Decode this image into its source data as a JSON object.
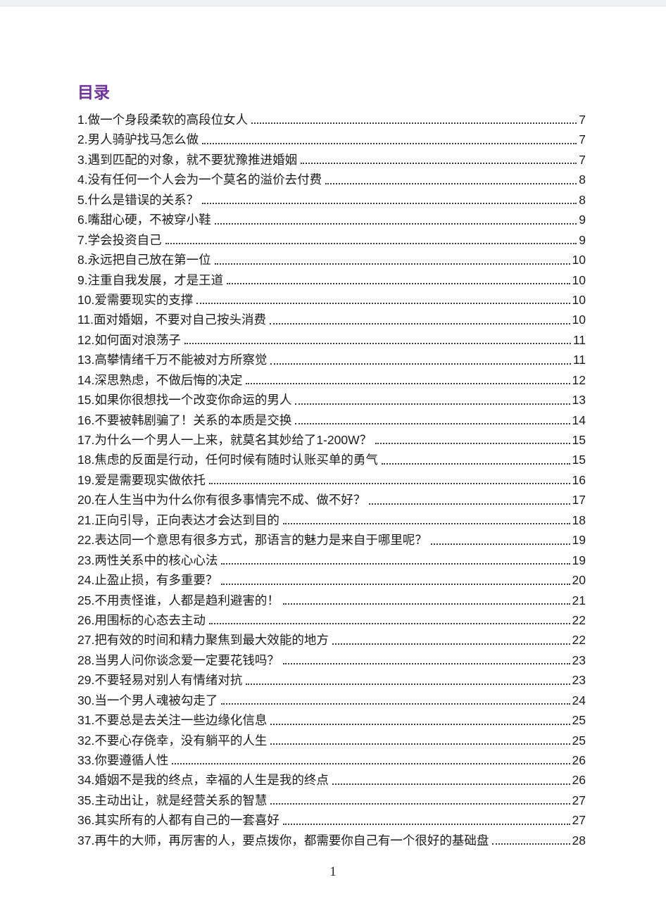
{
  "page": {
    "title": "目录",
    "footer": {
      "page_number": "1"
    }
  },
  "colors": {
    "title": "#7030A0",
    "body_text": "#1d1d1f",
    "leader_dots": "#3a3a3a",
    "top_strip": "#eef0f4"
  },
  "toc": {
    "entries": [
      {
        "label": "1.做一个身段柔软的高段位女人",
        "page": "7"
      },
      {
        "label": "2.男人骑驴找马怎么做",
        "page": "7"
      },
      {
        "label": "3.遇到匹配的对象，就不要犹豫推进婚姻",
        "page": "7"
      },
      {
        "label": "4.没有任何一个人会为一个莫名的溢价去付费",
        "page": "8"
      },
      {
        "label": "5.什么是错误的关系？",
        "page": "8"
      },
      {
        "label": "6.嘴甜心硬，不被穿小鞋",
        "page": "9"
      },
      {
        "label": "7.学会投资自己",
        "page": "9"
      },
      {
        "label": "8.永远把自己放在第一位",
        "page": "10"
      },
      {
        "label": "9.注重自我发展，才是王道",
        "page": "10"
      },
      {
        "label": "10.爱需要现实的支撑",
        "page": "10"
      },
      {
        "label": "11.面对婚姻，不要对自己按头消费",
        "page": "10"
      },
      {
        "label": "12.如何面对浪荡子",
        "page": "11"
      },
      {
        "label": "13.高攀情绪千万不能被对方所察觉",
        "page": "11"
      },
      {
        "label": "14.深思熟虑，不做后悔的决定",
        "page": "12"
      },
      {
        "label": "15.如果你很想找一个改变你命运的男人",
        "page": "13"
      },
      {
        "label": "16.不要被韩剧骗了！关系的本质是交换",
        "page": "14"
      },
      {
        "label": "17.为什么一个男人一上来，就莫名其妙给了1-200W？",
        "page": "15"
      },
      {
        "label": "18.焦虑的反面是行动，任何时候有随时认账买单的勇气",
        "page": "15"
      },
      {
        "label": "19.爱是需要现实做依托",
        "page": "16"
      },
      {
        "label": "20.在人生当中为什么你有很多事情完不成、做不好？",
        "page": "17"
      },
      {
        "label": "21.正向引导，正向表达才会达到目的",
        "page": "18"
      },
      {
        "label": "22.表达同一个意思有很多方式，那语言的魅力是来自于哪里呢？",
        "page": "19"
      },
      {
        "label": "23.两性关系中的核心心法",
        "page": "19"
      },
      {
        "label": "24.止盈止损，有多重要？",
        "page": "20"
      },
      {
        "label": "25.不用责怪谁，人都是趋利避害的！",
        "page": "21"
      },
      {
        "label": "26.用围标的心态去主动",
        "page": "22"
      },
      {
        "label": "27.把有效的时间和精力聚焦到最大效能的地方",
        "page": "22"
      },
      {
        "label": "28.当男人问你谈念爱一定要花钱吗？",
        "page": "23"
      },
      {
        "label": "29.不要轻易对别人有情绪对抗",
        "page": "23"
      },
      {
        "label": "30.当一个男人魂被勾走了",
        "page": "24"
      },
      {
        "label": "31.不要总是去关注一些边缘化信息",
        "page": "25"
      },
      {
        "label": "32.不要心存侥幸，没有躺平的人生",
        "page": "25"
      },
      {
        "label": "33.你要遵循人性",
        "page": "26"
      },
      {
        "label": "34.婚姻不是我的终点，幸福的人生是我的终点",
        "page": "26"
      },
      {
        "label": "35.主动出让，就是经营关系的智慧",
        "page": "27"
      },
      {
        "label": "36.其实所有的人都有自己的一套喜好",
        "page": "27"
      },
      {
        "label": "37.再牛的大师，再厉害的人，要点拨你，都需要你自己有一个很好的基础盘",
        "page": "28"
      }
    ]
  }
}
